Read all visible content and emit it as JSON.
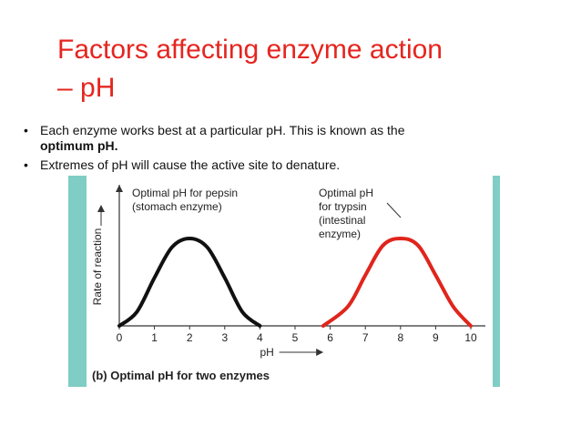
{
  "slide": {
    "title_line1": "Factors affecting enzyme action",
    "title_line2": "– pH",
    "bullets": [
      {
        "text": "Each enzyme works best at a particular pH. This is known as the",
        "bold": "optimum pH."
      },
      {
        "text": "Extremes of pH will cause the active site to denature."
      }
    ],
    "bullet_symbol": "•",
    "colors": {
      "title": "#e5251f",
      "panel": "#7fcdc4",
      "pepsin": "#111111",
      "trypsin": "#e0251c"
    }
  },
  "chart_data": {
    "type": "line",
    "caption": "(b) Optimal pH for two enzymes",
    "xlabel": "pH",
    "ylabel": "Rate of reaction",
    "xticks": [
      "0",
      "1",
      "2",
      "3",
      "4",
      "5",
      "6",
      "7",
      "8",
      "9",
      "10"
    ],
    "xlim": [
      0,
      10
    ],
    "ylim": [
      0,
      1
    ],
    "series": [
      {
        "name": "Optimal pH for pepsin (stomach enzyme)",
        "annotation_line1": "Optimal pH for pepsin",
        "annotation_line2": "(stomach enzyme)",
        "color": "#111111",
        "x": [
          0.0,
          0.5,
          1.0,
          1.5,
          2.0,
          2.5,
          3.0,
          3.5,
          4.0
        ],
        "y": [
          0.0,
          0.16,
          0.55,
          0.9,
          1.0,
          0.9,
          0.55,
          0.16,
          0.0
        ]
      },
      {
        "name": "Optimal pH for trypsin (intestinal enzyme)",
        "annotation_line1": "Optimal pH",
        "annotation_line2": "for trypsin",
        "annotation_line3": "(intestinal",
        "annotation_line4": "enzyme)",
        "color": "#e0251c",
        "x": [
          5.8,
          6.5,
          7.0,
          7.5,
          8.0,
          8.5,
          9.0,
          9.5,
          10.0
        ],
        "y": [
          0.0,
          0.22,
          0.58,
          0.92,
          1.0,
          0.92,
          0.58,
          0.22,
          0.0
        ]
      }
    ]
  }
}
